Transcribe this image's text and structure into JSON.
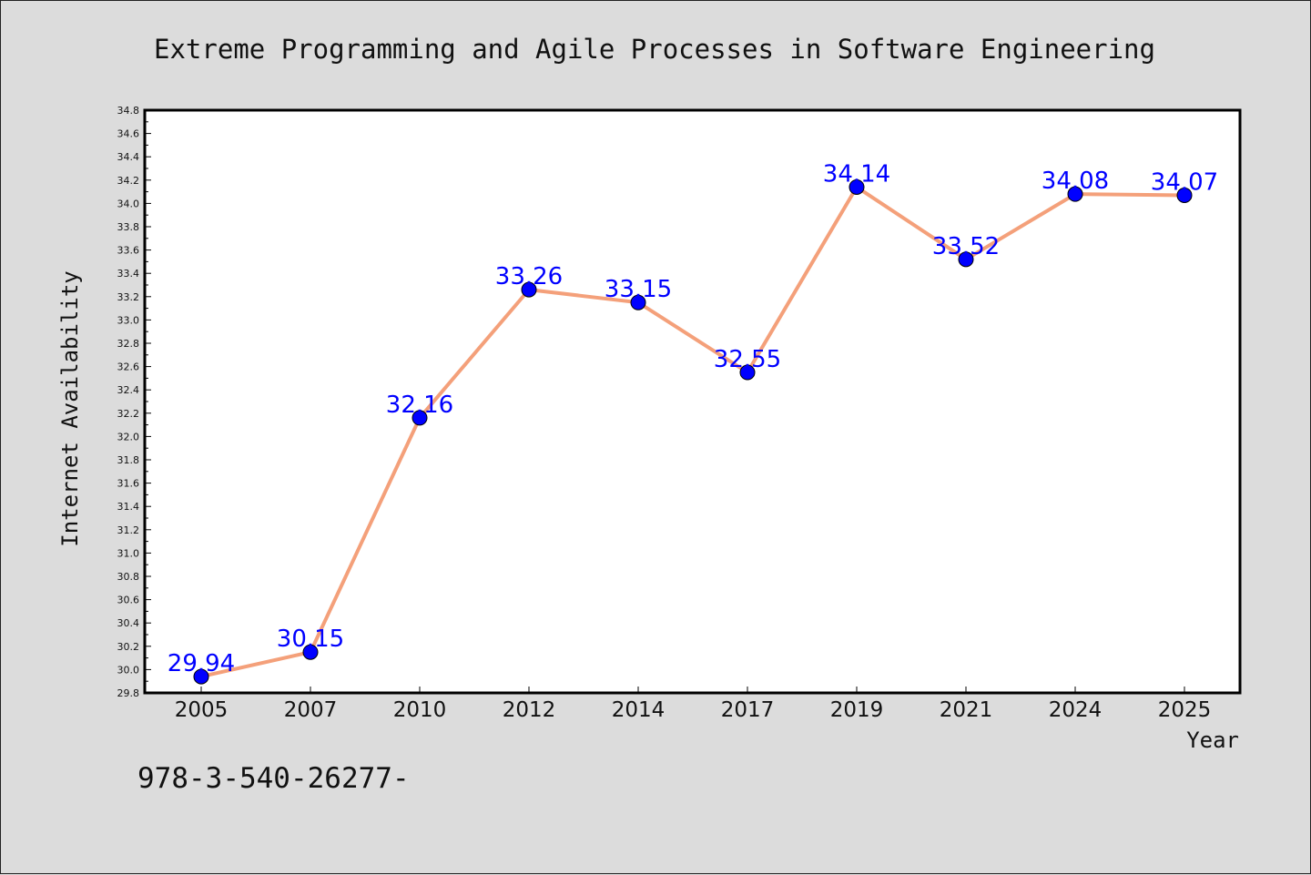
{
  "chart_data": {
    "type": "line",
    "title": "Extreme Programming and Agile Processes in Software Engineering",
    "xlabel": "Year",
    "ylabel": "Internet Availability",
    "categories": [
      "2005",
      "2007",
      "2010",
      "2012",
      "2014",
      "2017",
      "2019",
      "2021",
      "2024",
      "2025"
    ],
    "series": [
      {
        "values": [
          29.94,
          30.15,
          32.16,
          33.26,
          33.15,
          32.55,
          34.14,
          33.52,
          34.08,
          34.07
        ],
        "labels": [
          "29.94",
          "30.15",
          "32.16",
          "33.26",
          "33.15",
          "32.55",
          "34.14",
          "33.52",
          "34.08",
          "34.07"
        ],
        "line_color": "#f4a07a",
        "marker_color": "#0000ff"
      }
    ],
    "ylim": [
      29.8,
      34.8
    ],
    "yticks": [
      "29.8",
      "30.0",
      "30.2",
      "30.4",
      "30.6",
      "30.8",
      "31.0",
      "31.2",
      "31.4",
      "31.6",
      "31.8",
      "32.0",
      "32.2",
      "32.4",
      "32.6",
      "32.8",
      "33.0",
      "33.2",
      "33.4",
      "33.6",
      "33.8",
      "34.0",
      "34.2",
      "34.4",
      "34.6",
      "34.8"
    ],
    "grid": false,
    "legend": "none"
  },
  "footer": {
    "isbn_text": "978-3-540-26277-"
  },
  "colors": {
    "background": "#dcdcdc",
    "plot_background": "#ffffff",
    "line": "#f4a07a",
    "marker": "#0000ff",
    "data_label": "#0000ff"
  }
}
